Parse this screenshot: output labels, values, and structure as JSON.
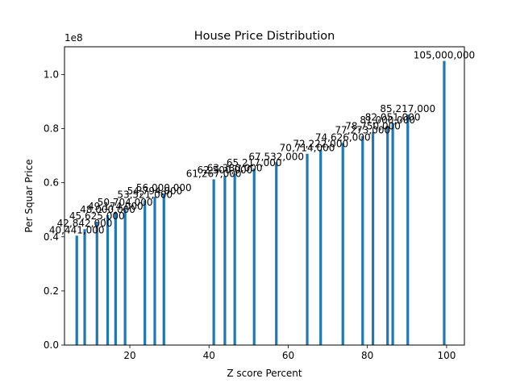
{
  "chart_data": {
    "type": "bar",
    "title": "House Price Distribution",
    "xlabel": "Z score Percent",
    "ylabel": "Per Squar Price",
    "y_offset_label": "1e8",
    "xlim": [
      3.5,
      104.5
    ],
    "ylim": [
      0,
      110250000
    ],
    "x_ticks": [
      20,
      40,
      60,
      80,
      100
    ],
    "y_ticks": [
      0,
      0.2,
      0.4,
      0.6,
      0.8,
      1.0
    ],
    "y_tick_labels": [
      "0.0",
      "0.2",
      "0.4",
      "0.6",
      "0.8",
      "1.0"
    ],
    "grid": false,
    "bar_color": "#1f77b4",
    "bars": [
      {
        "x": 6.6,
        "value": 40441000,
        "label": "40,441,000"
      },
      {
        "x": 8.6,
        "value": 42842000,
        "label": "42,842,000"
      },
      {
        "x": 11.7,
        "value": 45625000,
        "label": "45,625,000"
      },
      {
        "x": 14.4,
        "value": 48000000,
        "label": "48,000,000"
      },
      {
        "x": 16.4,
        "value": 49174000,
        "label": "49,174,000"
      },
      {
        "x": 18.8,
        "value": 50704000,
        "label": "50,704,000"
      },
      {
        "x": 23.8,
        "value": 53521000,
        "label": "53,521,000"
      },
      {
        "x": 26.3,
        "value": 54794000,
        "label": "54,794,000"
      },
      {
        "x": 28.6,
        "value": 56000000,
        "label": "56,000,000"
      },
      {
        "x": 41.2,
        "value": 61267000,
        "label": "61,267,000"
      },
      {
        "x": 44.0,
        "value": 62500000,
        "label": "62,500,000"
      },
      {
        "x": 46.5,
        "value": 63380000,
        "label": "63,380,000"
      },
      {
        "x": 51.4,
        "value": 65217000,
        "label": "65,217,000"
      },
      {
        "x": 57.0,
        "value": 67532000,
        "label": "67,532,000"
      },
      {
        "x": 64.8,
        "value": 70714000,
        "label": "70,714,000"
      },
      {
        "x": 68.2,
        "value": 72222000,
        "label": "72,222,000"
      },
      {
        "x": 73.8,
        "value": 74626000,
        "label": "74,626,000"
      },
      {
        "x": 78.8,
        "value": 77273000,
        "label": "77,273,000"
      },
      {
        "x": 81.4,
        "value": 78750000,
        "label": "78,750,000"
      },
      {
        "x": 85.1,
        "value": 81000000,
        "label": "81,000,000"
      },
      {
        "x": 86.4,
        "value": 82051000,
        "label": "82,051,000"
      },
      {
        "x": 90.2,
        "value": 85217000,
        "label": "85,217,000"
      },
      {
        "x": 99.4,
        "value": 105000000,
        "label": "105,000,000"
      }
    ]
  }
}
